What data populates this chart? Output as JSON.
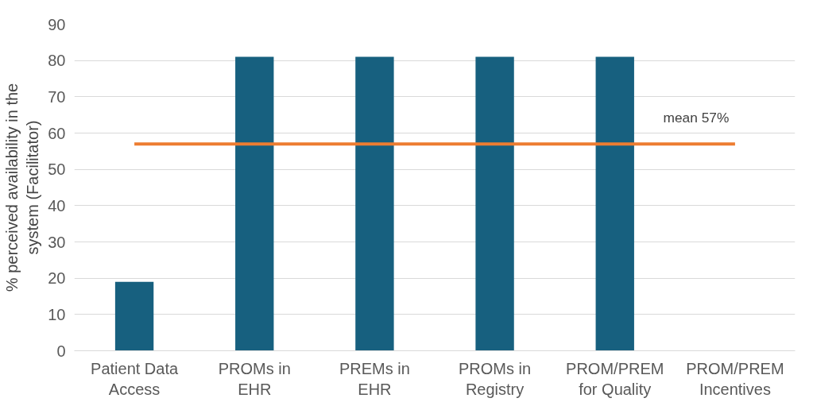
{
  "chart_data": {
    "type": "bar",
    "ylabel": "% perceived availability in the\nsystem (Facilitator)",
    "categories": [
      "Patient Data\nAccess",
      "PROMs in\nEHR",
      "PREMs in\nEHR",
      "PROMs in\nRegistry",
      "PROM/PREM\nfor Quality",
      "PROM/PREM\nIncentives"
    ],
    "values": [
      19,
      81,
      81,
      81,
      81,
      0
    ],
    "color": "#17607f",
    "ylim": [
      0,
      90
    ],
    "yticks": [
      0,
      10,
      20,
      30,
      40,
      50,
      60,
      70,
      80,
      90
    ],
    "grid": "y",
    "ref_lines": [
      {
        "axis": "y",
        "value": 57,
        "label": "mean 57%",
        "color": "#ed7d31"
      }
    ]
  }
}
